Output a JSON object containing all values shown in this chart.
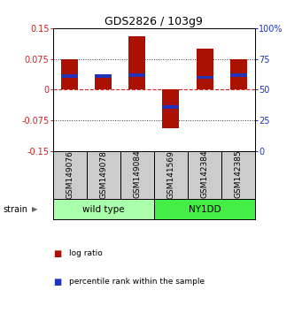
{
  "title": "GDS2826 / 103g9",
  "samples": [
    "GSM149076",
    "GSM149078",
    "GSM149084",
    "GSM141569",
    "GSM142384",
    "GSM142385"
  ],
  "log_ratios": [
    0.075,
    0.035,
    0.13,
    -0.095,
    0.1,
    0.075
  ],
  "percentile_ranks": [
    61,
    61,
    62,
    36,
    60,
    62
  ],
  "groups": [
    {
      "label": "wild type",
      "indices": [
        0,
        1,
        2
      ],
      "color": "#aaffaa"
    },
    {
      "label": "NY1DD",
      "indices": [
        3,
        4,
        5
      ],
      "color": "#44ee44"
    }
  ],
  "ylim": [
    -0.15,
    0.15
  ],
  "y2lim": [
    0,
    100
  ],
  "yticks": [
    -0.15,
    -0.075,
    0,
    0.075,
    0.15
  ],
  "y2ticks": [
    0,
    25,
    50,
    75,
    100
  ],
  "bar_color": "#aa1100",
  "percentile_color": "#2233bb",
  "hline_color": "#cc2222",
  "grid_color": "#555555",
  "bar_width": 0.5,
  "percentile_bar_height": 0.008,
  "strain_label": "strain",
  "legend_log_ratio": "log ratio",
  "legend_percentile": "percentile rank within the sample",
  "background_color": "#ffffff",
  "plot_bg": "#ffffff",
  "left_axis_color": "#cc2222",
  "right_axis_color": "#2233bb",
  "label_bg": "#cccccc",
  "label_fontsize": 6.5,
  "title_fontsize": 9
}
